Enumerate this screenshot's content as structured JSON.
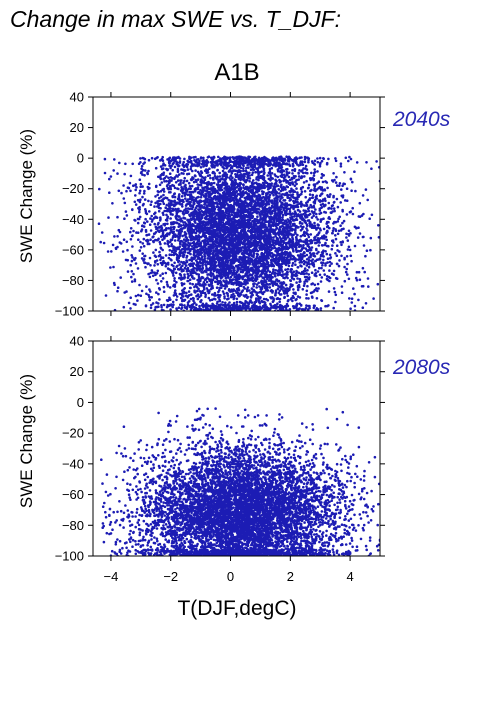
{
  "page_title": "Change in max SWE vs. T_DJF:",
  "scenario_title": "A1B",
  "colors": {
    "points": "#1c1cb4",
    "period_label": "#2828b4"
  },
  "chart_data": [
    {
      "type": "scatter",
      "panel": "2040s",
      "ylabel": "SWE Change (%)",
      "xlabel": "",
      "xlim": [
        -4.6,
        5.0
      ],
      "ylim": [
        -100,
        40
      ],
      "xticks": [
        -4,
        -2,
        0,
        2,
        4
      ],
      "yticks": [
        -100,
        -80,
        -60,
        -40,
        -20,
        0,
        20,
        40
      ],
      "ytick_labels": [
        "−100",
        "−80",
        "−60",
        "−40",
        "−20",
        "0",
        "20",
        "40"
      ],
      "xtick_labels": [],
      "grid": false,
      "cluster": {
        "x_center": 0.3,
        "x_spread": 1.6,
        "y_center": -48,
        "y_spread": 30,
        "y_max": 1,
        "n_points": 7000
      },
      "points_sample": [
        [
          -4.0,
          -12
        ],
        [
          -3.5,
          -35
        ],
        [
          -3.0,
          -90
        ],
        [
          -2.5,
          -60
        ],
        [
          -2.0,
          -2
        ],
        [
          -1.0,
          -45
        ],
        [
          0.0,
          -50
        ],
        [
          0.5,
          -70
        ],
        [
          1.0,
          -30
        ],
        [
          2.0,
          -80
        ],
        [
          3.0,
          0
        ],
        [
          4.0,
          -60
        ],
        [
          5.0,
          -15
        ]
      ]
    },
    {
      "type": "scatter",
      "panel": "2080s",
      "ylabel": "SWE Change (%)",
      "xlabel": "T(DJF,degC)",
      "xlim": [
        -4.6,
        5.0
      ],
      "ylim": [
        -100,
        40
      ],
      "xticks": [
        -4,
        -2,
        0,
        2,
        4
      ],
      "xtick_labels": [
        "−4",
        "−2",
        "0",
        "2",
        "4"
      ],
      "yticks": [
        -100,
        -80,
        -60,
        -40,
        -20,
        0,
        20,
        40
      ],
      "ytick_labels": [
        "−100",
        "−80",
        "−60",
        "−40",
        "−20",
        "0",
        "20",
        "40"
      ],
      "grid": false,
      "cluster": {
        "x_center": 0.4,
        "x_spread": 1.7,
        "y_center": -72,
        "y_spread": 22,
        "y_max": -4,
        "n_points": 7000
      },
      "points_sample": [
        [
          -4.0,
          -78
        ],
        [
          -3.5,
          -35
        ],
        [
          -2.0,
          -15
        ],
        [
          -1.0,
          -10
        ],
        [
          -0.5,
          -4
        ],
        [
          0.0,
          -60
        ],
        [
          1.0,
          -90
        ],
        [
          2.0,
          -85
        ],
        [
          3.0,
          -30
        ],
        [
          4.0,
          -70
        ],
        [
          5.0,
          -90
        ]
      ]
    }
  ]
}
